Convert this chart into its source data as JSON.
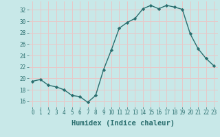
{
  "xlabel": "Humidex (Indice chaleur)",
  "ylabel": "",
  "x": [
    0,
    1,
    2,
    3,
    4,
    5,
    6,
    7,
    8,
    9,
    10,
    11,
    12,
    13,
    14,
    15,
    16,
    17,
    18,
    19,
    20,
    21,
    22,
    23
  ],
  "y": [
    19.5,
    19.8,
    18.8,
    18.5,
    18.0,
    17.0,
    16.8,
    15.8,
    17.0,
    21.5,
    25.0,
    28.8,
    29.8,
    30.5,
    32.2,
    32.8,
    32.2,
    32.8,
    32.5,
    32.1,
    27.8,
    25.2,
    23.5,
    22.2
  ],
  "line_color": "#2a6e6e",
  "marker": "D",
  "marker_size": 2.2,
  "bg_color": "#c8e8e8",
  "grid_color": "#e8c8c8",
  "xlim": [
    -0.5,
    23.5
  ],
  "ylim": [
    15.0,
    33.5
  ],
  "yticks": [
    16,
    18,
    20,
    22,
    24,
    26,
    28,
    30,
    32
  ],
  "xticks": [
    0,
    1,
    2,
    3,
    4,
    5,
    6,
    7,
    8,
    9,
    10,
    11,
    12,
    13,
    14,
    15,
    16,
    17,
    18,
    19,
    20,
    21,
    22,
    23
  ],
  "tick_fontsize": 5.5,
  "xlabel_fontsize": 7.5,
  "linewidth": 1.0
}
